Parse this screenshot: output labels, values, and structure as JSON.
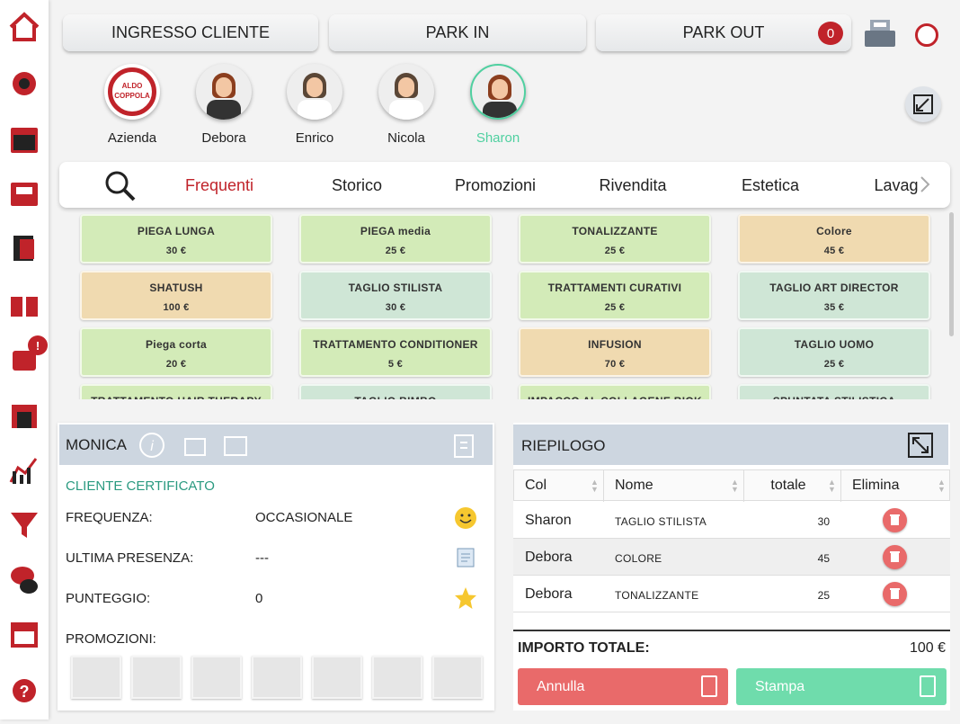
{
  "top_buttons": [
    "INGRESSO CLIENTE",
    "PARK IN",
    "PARK OUT"
  ],
  "park_out_badge": 0,
  "logo": [
    "ALDO",
    "COPPOLA"
  ],
  "staff": [
    {
      "name": "Azienda"
    },
    {
      "name": "Debora"
    },
    {
      "name": "Enrico"
    },
    {
      "name": "Nicola"
    },
    {
      "name": "Sharon"
    }
  ],
  "tabs": [
    "Frequenti",
    "Storico",
    "Promozioni",
    "Rivendita",
    "Estetica",
    "Lavag"
  ],
  "services": [
    {
      "name": "PIEGA LUNGA",
      "price": "30 €",
      "color": "#d3ebb8"
    },
    {
      "name": "PIEGA media",
      "price": "25 €",
      "color": "#d3ebb8"
    },
    {
      "name": "TONALIZZANTE",
      "price": "25 €",
      "color": "#d3ebb8"
    },
    {
      "name": "Colore",
      "price": "45 €",
      "color": "#f0dab0"
    },
    {
      "name": "SHATUSH",
      "price": "100 €",
      "color": "#f0dab0"
    },
    {
      "name": "TAGLIO STILISTA",
      "price": "30 €",
      "color": "#cfe6d6"
    },
    {
      "name": "TRATTAMENTI CURATIVI",
      "price": "25 €",
      "color": "#d3ebb8"
    },
    {
      "name": "TAGLIO ART DIRECTOR",
      "price": "35 €",
      "color": "#cfe6d6"
    },
    {
      "name": "Piega corta",
      "price": "20 €",
      "color": "#d3ebb8"
    },
    {
      "name": "TRATTAMENTO CONDITIONER",
      "price": "5 €",
      "color": "#d3ebb8"
    },
    {
      "name": "INFUSION",
      "price": "70 €",
      "color": "#f0dab0"
    },
    {
      "name": "TAGLIO UOMO",
      "price": "25 €",
      "color": "#cfe6d6"
    },
    {
      "name": "TRATTAMENTO HAIR THERAPY",
      "color": "#d3ebb8"
    },
    {
      "name": "TAGLIO BIMBO",
      "color": "#cfe6d6"
    },
    {
      "name": "IMPACCO AL COLLAGENE BIOK",
      "color": "#d3ebb8"
    },
    {
      "name": "SPUNTATA STILISTICA",
      "color": "#cfe6d6"
    }
  ],
  "client": {
    "name": "MONICA",
    "status": "CLIENTE CERTIFICATO",
    "fields": [
      {
        "label": "FREQUENZA:",
        "value": "OCCASIONALE"
      },
      {
        "label": "ULTIMA PRESENZA:",
        "value": "---"
      },
      {
        "label": "PUNTEGGIO:",
        "value": "0"
      }
    ],
    "promotions_label": "PROMOZIONI:"
  },
  "summary": {
    "title": "RIEPILOGO",
    "columns": [
      "Col",
      "Nome",
      "totale",
      "Elimina"
    ],
    "rows": [
      [
        "Sharon",
        "TAGLIO STILISTA",
        30
      ],
      [
        "Debora",
        "COLORE",
        45
      ],
      [
        "Debora",
        "TONALIZZANTE",
        25
      ]
    ],
    "total_label": "IMPORTO TOTALE:",
    "total": "100 €",
    "buttons": [
      "Annulla",
      "Stampa"
    ]
  },
  "sidebar_badge": "!"
}
